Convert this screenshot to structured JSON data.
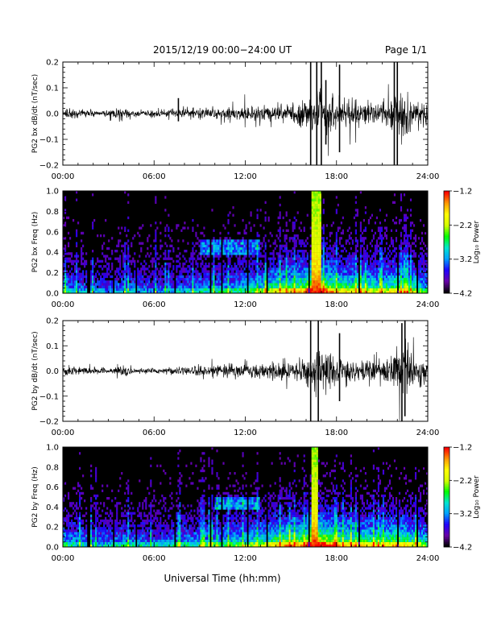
{
  "header": {
    "title": "2015/12/19  00:00−24:00 UT",
    "page": "Page 1/1"
  },
  "xlabel": "Universal Time (hh:mm)",
  "colors": {
    "trace": "#000000",
    "spectrogram_background": "#000000",
    "colormap": [
      "#000000",
      "#6a00a8",
      "#1f00ff",
      "#00a0ff",
      "#00e5d0",
      "#00ff00",
      "#d4ff00",
      "#ffff00",
      "#ff9900",
      "#ff0000"
    ]
  },
  "chart_data": [
    {
      "id": "bx-dbdt",
      "type": "line",
      "title": "",
      "xlabel": "",
      "ylabel": "PG2 bx dB/dt (nT/sec)",
      "xlim": [
        0,
        24
      ],
      "ylim": [
        -0.2,
        0.2
      ],
      "x_ticks": [
        0,
        6,
        12,
        18,
        24
      ],
      "x_tick_labels": [
        "00:00",
        "06:00",
        "12:00",
        "18:00",
        "24:00"
      ],
      "y_ticks": [
        -0.2,
        -0.1,
        0.0,
        0.1,
        0.2
      ],
      "y_tick_labels": [
        "−0.2",
        "−0.1",
        "0.0",
        "0.1",
        "0.2"
      ],
      "grid": false,
      "envelope": {
        "hours": [
          0,
          1,
          2,
          3,
          3.8,
          4.5,
          6,
          8,
          9,
          10,
          11,
          12,
          13,
          14,
          15,
          16,
          16.5,
          17,
          17.5,
          18,
          19,
          20,
          21,
          22,
          22.5,
          23,
          24
        ],
        "amplitude": [
          0.022,
          0.016,
          0.01,
          0.012,
          0.022,
          0.01,
          0.01,
          0.016,
          0.02,
          0.02,
          0.024,
          0.026,
          0.028,
          0.034,
          0.034,
          0.045,
          0.07,
          0.09,
          0.07,
          0.05,
          0.045,
          0.04,
          0.038,
          0.06,
          0.09,
          0.05,
          0.04
        ]
      },
      "spikes": [
        {
          "hour": 16.3,
          "low": -0.2,
          "high": 0.2
        },
        {
          "hour": 16.7,
          "low": -0.2,
          "high": 0.2
        },
        {
          "hour": 17.0,
          "low": -0.2,
          "high": 0.2
        },
        {
          "hour": 17.3,
          "low": -0.12,
          "high": 0.13
        },
        {
          "hour": 18.2,
          "low": -0.15,
          "high": 0.19
        },
        {
          "hour": 21.8,
          "low": -0.2,
          "high": 0.2
        },
        {
          "hour": 22.0,
          "low": -0.2,
          "high": 0.2
        },
        {
          "hour": 7.6,
          "low": -0.03,
          "high": 0.06
        }
      ]
    },
    {
      "id": "bx-spectrogram",
      "type": "heatmap",
      "title": "",
      "xlabel": "",
      "ylabel": "PG2 bx Freq (Hz)",
      "xlim": [
        0,
        24
      ],
      "ylim": [
        0.0,
        1.0
      ],
      "x_ticks": [
        0,
        6,
        12,
        18,
        24
      ],
      "x_tick_labels": [
        "00:00",
        "06:00",
        "12:00",
        "18:00",
        "24:00"
      ],
      "y_ticks": [
        0.0,
        0.2,
        0.4,
        0.6,
        0.8,
        1.0
      ],
      "y_tick_labels": [
        "0.0",
        "0.2",
        "0.4",
        "0.6",
        "0.8",
        "1.0"
      ],
      "colorbar": {
        "label": "Log₁₀ Power",
        "range": [
          -4.2,
          -1.2
        ],
        "ticks": [
          -1.2,
          -2.2,
          -3.2,
          -4.2
        ],
        "tick_labels": [
          "−1.2",
          "−2.2",
          "−3.2",
          "−4.2"
        ]
      },
      "activity_profile": {
        "hours": [
          0,
          1,
          2,
          3,
          4,
          6,
          8,
          10,
          12,
          13,
          14,
          15,
          16,
          16.5,
          17,
          18,
          19,
          20,
          21,
          22,
          23,
          24
        ],
        "level": [
          0.35,
          0.3,
          0.25,
          0.25,
          0.3,
          0.25,
          0.3,
          0.35,
          0.4,
          0.45,
          0.55,
          0.6,
          0.65,
          0.95,
          0.75,
          0.6,
          0.55,
          0.55,
          0.5,
          0.6,
          0.5,
          0.4
        ]
      },
      "features": {
        "strong_bursts": [
          16.5,
          16.7,
          16.9
        ],
        "dark_gaps": [
          1.7,
          3.3,
          4.8,
          7.4,
          9.7,
          10.5,
          12.2,
          13.4,
          16.2,
          19.5,
          22.0,
          23.3
        ],
        "band": {
          "hour_start": 9.0,
          "hour_end": 13.0,
          "freq_low": 0.38,
          "freq_high": 0.52
        }
      }
    },
    {
      "id": "by-dbdt",
      "type": "line",
      "title": "",
      "xlabel": "",
      "ylabel": "PG2 by dB/dt (nT/sec)",
      "xlim": [
        0,
        24
      ],
      "ylim": [
        -0.2,
        0.2
      ],
      "x_ticks": [
        0,
        6,
        12,
        18,
        24
      ],
      "x_tick_labels": [
        "00:00",
        "06:00",
        "12:00",
        "18:00",
        "24:00"
      ],
      "y_ticks": [
        -0.2,
        -0.1,
        0.0,
        0.1,
        0.2
      ],
      "y_tick_labels": [
        "−0.2",
        "−0.1",
        "0.0",
        "0.1",
        "0.2"
      ],
      "grid": false,
      "envelope": {
        "hours": [
          0,
          1,
          2,
          3,
          3.8,
          4.5,
          6,
          8,
          9,
          10,
          11,
          12,
          13,
          14,
          15,
          16,
          16.5,
          17,
          17.5,
          18,
          19,
          20,
          21,
          22,
          22.5,
          23,
          24
        ],
        "amplitude": [
          0.022,
          0.014,
          0.01,
          0.012,
          0.02,
          0.01,
          0.01,
          0.014,
          0.018,
          0.02,
          0.022,
          0.025,
          0.028,
          0.034,
          0.034,
          0.045,
          0.07,
          0.08,
          0.065,
          0.05,
          0.042,
          0.04,
          0.038,
          0.075,
          0.1,
          0.05,
          0.04
        ]
      },
      "spikes": [
        {
          "hour": 16.3,
          "low": -0.2,
          "high": 0.2
        },
        {
          "hour": 16.8,
          "low": -0.2,
          "high": 0.2
        },
        {
          "hour": 18.2,
          "low": -0.12,
          "high": 0.15
        },
        {
          "hour": 22.3,
          "low": -0.2,
          "high": 0.19
        },
        {
          "hour": 22.5,
          "low": -0.18,
          "high": 0.2
        }
      ]
    },
    {
      "id": "by-spectrogram",
      "type": "heatmap",
      "title": "",
      "xlabel": "",
      "ylabel": "PG2 by Freq (Hz)",
      "xlim": [
        0,
        24
      ],
      "ylim": [
        0.0,
        1.0
      ],
      "x_ticks": [
        0,
        6,
        12,
        18,
        24
      ],
      "x_tick_labels": [
        "00:00",
        "06:00",
        "12:00",
        "18:00",
        "24:00"
      ],
      "y_ticks": [
        0.0,
        0.2,
        0.4,
        0.6,
        0.8,
        1.0
      ],
      "y_tick_labels": [
        "0.0",
        "0.2",
        "0.4",
        "0.6",
        "0.8",
        "1.0"
      ],
      "colorbar": {
        "label": "Log₁₀ Power",
        "range": [
          -4.2,
          -1.2
        ],
        "ticks": [
          -1.2,
          -2.2,
          -3.2,
          -4.2
        ],
        "tick_labels": [
          "−1.2",
          "−2.2",
          "−3.2",
          "−4.2"
        ]
      },
      "activity_profile": {
        "hours": [
          0,
          1,
          2,
          3,
          4,
          6,
          8,
          10,
          12,
          13,
          14,
          15,
          16,
          16.5,
          17,
          18,
          19,
          20,
          21,
          22,
          23,
          24
        ],
        "level": [
          0.4,
          0.35,
          0.3,
          0.3,
          0.35,
          0.3,
          0.35,
          0.4,
          0.45,
          0.5,
          0.6,
          0.65,
          0.7,
          0.95,
          0.8,
          0.65,
          0.6,
          0.6,
          0.55,
          0.65,
          0.55,
          0.45
        ]
      },
      "features": {
        "strong_bursts": [
          16.5,
          16.7
        ],
        "dark_gaps": [
          1.7,
          3.3,
          4.8,
          7.4,
          9.7,
          10.5,
          12.2,
          13.4,
          16.2,
          19.5,
          22.0,
          23.3
        ],
        "band": {
          "hour_start": 10.0,
          "hour_end": 13.0,
          "freq_low": 0.38,
          "freq_high": 0.5
        }
      }
    }
  ]
}
